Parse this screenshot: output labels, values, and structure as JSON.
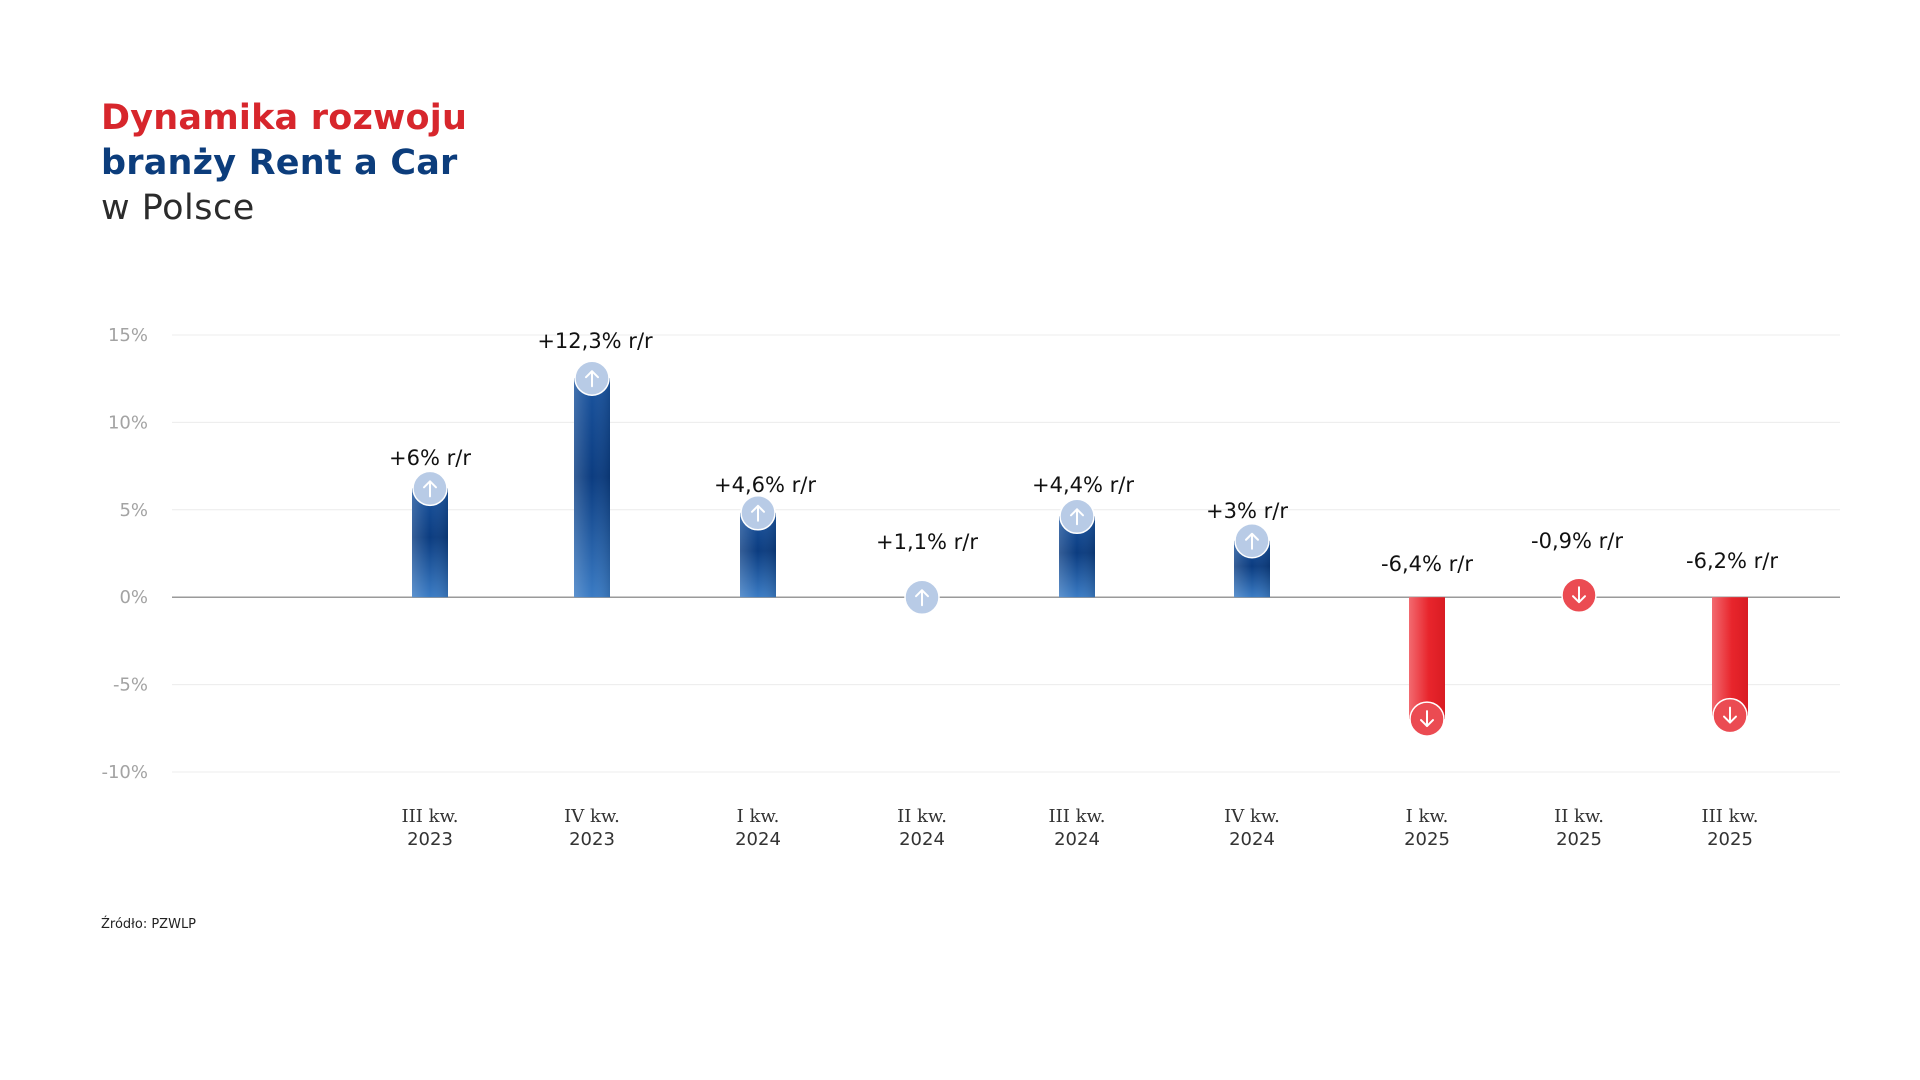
{
  "title": {
    "line1": "Dynamika rozwoju",
    "line2": "branży Rent a Car",
    "line3": "w Polsce"
  },
  "source": {
    "label": "Źródło:",
    "value": "PZWLP"
  },
  "colors": {
    "positive_dark": "#0b3c80",
    "positive_light": "#3a7bc4",
    "negative_dark": "#e8252c",
    "negative_light": "#f06a70",
    "marker_positive": "#b8cbe6",
    "marker_negative": "#eb4b52",
    "axis_label": "#a3a3a3",
    "grid": "#ececec",
    "zero_line": "#9a9a9a"
  },
  "chart_data": {
    "type": "bar",
    "title": "",
    "xlabel": "",
    "ylabel": "",
    "ylim": [
      -10,
      15
    ],
    "yticks": [
      15,
      10,
      5,
      0,
      -5,
      -10
    ],
    "ytick_labels": [
      "15%",
      "10%",
      "5%",
      "0%",
      "-5%",
      "-10%"
    ],
    "grid": true,
    "categories": [
      [
        "III kw.",
        "2023"
      ],
      [
        "IV kw.",
        "2023"
      ],
      [
        "I kw.",
        "2024"
      ],
      [
        "II kw.",
        "2024"
      ],
      [
        "III kw.",
        "2024"
      ],
      [
        "IV kw.",
        "2024"
      ],
      [
        "I kw.",
        "2025"
      ],
      [
        "II kw.",
        "2025"
      ],
      [
        "III kw.",
        "2025"
      ]
    ],
    "values": [
      6,
      12.3,
      4.6,
      1.1,
      4.4,
      3,
      -6.4,
      -0.9,
      -6.2
    ],
    "labels": [
      "+6% r/r",
      "+12,3% r/r",
      "+4,6% r/r",
      "+1,1% r/r",
      "+4,4% r/r",
      "+3% r/r",
      "-6,4% r/r",
      "-0,9% r/r",
      "-6,2% r/r"
    ]
  }
}
